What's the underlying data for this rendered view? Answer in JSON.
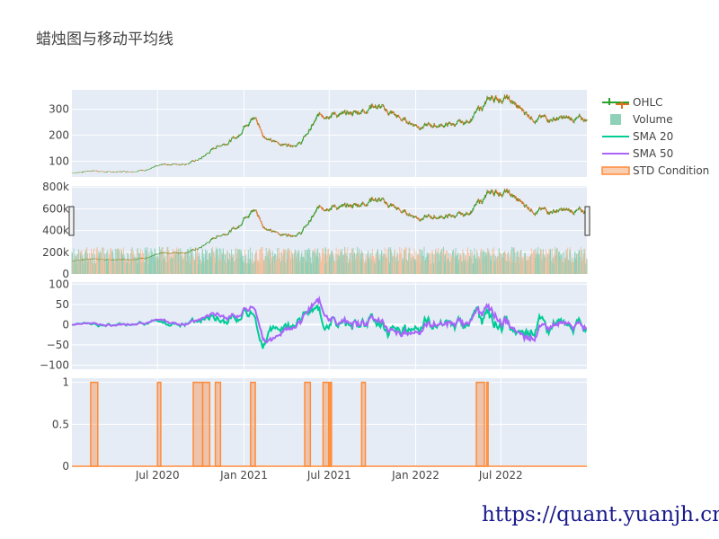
{
  "title": "蜡烛图与移动平均线",
  "watermark": "https://quant.yuanjh.cn",
  "colors": {
    "up": "#2ca02c",
    "down": "#e07020",
    "volume_up": "#8fd0b8",
    "volume_down": "#f4c0a0",
    "sma20": "#00cc96",
    "sma50": "#ab63fa",
    "std": "#ff8c3a",
    "std_fill": "rgba(244,164,110,0.55)",
    "plot_bg": "#e5ecf6",
    "grid": "#ffffff"
  },
  "chart_data": [
    {
      "type": "candlestick",
      "panel": "price",
      "series_name": "OHLC",
      "x_range": [
        "2020-01-01",
        "2022-12-31"
      ],
      "ylim": [
        40,
        375
      ],
      "y_ticks": [
        "100",
        "200",
        "300"
      ],
      "y_tick_values": [
        100,
        200,
        300
      ],
      "close_keyframes": [
        [
          "2020-01-01",
          55
        ],
        [
          "2020-02-15",
          65
        ],
        [
          "2020-03-20",
          58
        ],
        [
          "2020-05-01",
          62
        ],
        [
          "2020-06-15",
          70
        ],
        [
          "2020-07-15",
          88
        ],
        [
          "2020-09-01",
          92
        ],
        [
          "2020-10-01",
          110
        ],
        [
          "2020-11-01",
          155
        ],
        [
          "2020-12-01",
          180
        ],
        [
          "2020-12-20",
          195
        ],
        [
          "2021-01-05",
          255
        ],
        [
          "2021-01-25",
          268
        ],
        [
          "2021-02-10",
          205
        ],
        [
          "2021-03-01",
          175
        ],
        [
          "2021-04-01",
          165
        ],
        [
          "2021-05-01",
          170
        ],
        [
          "2021-06-10",
          275
        ],
        [
          "2021-07-01",
          290
        ],
        [
          "2021-08-01",
          275
        ],
        [
          "2021-09-15",
          300
        ],
        [
          "2021-10-01",
          320
        ],
        [
          "2021-11-15",
          280
        ],
        [
          "2021-12-01",
          260
        ],
        [
          "2022-01-15",
          235
        ],
        [
          "2022-03-01",
          240
        ],
        [
          "2022-04-15",
          245
        ],
        [
          "2022-06-10",
          340
        ],
        [
          "2022-07-10",
          345
        ],
        [
          "2022-08-10",
          300
        ],
        [
          "2022-09-15",
          265
        ],
        [
          "2022-10-15",
          265
        ],
        [
          "2022-12-31",
          260
        ]
      ]
    },
    {
      "type": "bar",
      "panel": "volume",
      "series_name": "Volume",
      "ylim": [
        0,
        810000
      ],
      "y_ticks": [
        "0",
        "200k",
        "400k",
        "600k",
        "800k"
      ],
      "y_tick_values": [
        0,
        200000,
        400000,
        600000,
        800000
      ],
      "note_overlay": "price line echoed at volume scale",
      "price_to_volume_scale": 2200
    },
    {
      "type": "line",
      "panel": "indicator",
      "series": [
        {
          "name": "SMA 20",
          "window": 20
        },
        {
          "name": "SMA 50",
          "window": 50
        }
      ],
      "ylim": [
        -110,
        105
      ],
      "y_ticks": [
        "−100",
        "−50",
        "0",
        "50",
        "100"
      ],
      "y_tick_values": [
        -100,
        -50,
        0,
        50,
        100
      ]
    },
    {
      "type": "area",
      "panel": "condition",
      "series_name": "STD Condition",
      "ylim": [
        0,
        1.05
      ],
      "y_ticks": [
        "0",
        "0.5",
        "1"
      ],
      "y_tick_values": [
        0,
        0.5,
        1
      ],
      "on_intervals": [
        [
          "2020-02-10",
          "2020-02-25"
        ],
        [
          "2020-07-01",
          "2020-07-08"
        ],
        [
          "2020-09-15",
          "2020-10-05"
        ],
        [
          "2020-10-05",
          "2020-10-20"
        ],
        [
          "2020-11-01",
          "2020-11-12"
        ],
        [
          "2021-01-15",
          "2021-01-25"
        ],
        [
          "2021-05-10",
          "2021-05-22"
        ],
        [
          "2021-06-18",
          "2021-06-30"
        ],
        [
          "2021-07-03",
          "2021-07-06"
        ],
        [
          "2021-09-08",
          "2021-09-16"
        ],
        [
          "2022-05-10",
          "2022-05-27"
        ],
        [
          "2022-06-01",
          "2022-06-04"
        ]
      ]
    }
  ],
  "x_axis": {
    "ticks": [
      "Jul 2020",
      "Jan 2021",
      "Jul 2021",
      "Jan 2022",
      "Jul 2022"
    ],
    "tick_dates": [
      "2020-07-01",
      "2021-01-01",
      "2021-07-01",
      "2022-01-01",
      "2022-07-01"
    ]
  },
  "legend": {
    "items": [
      {
        "label": "OHLC",
        "kind": "ohlc"
      },
      {
        "label": "Volume",
        "kind": "bar"
      },
      {
        "label": "SMA 20",
        "kind": "line20"
      },
      {
        "label": "SMA 50",
        "kind": "line50"
      },
      {
        "label": "STD Condition",
        "kind": "area"
      }
    ]
  }
}
